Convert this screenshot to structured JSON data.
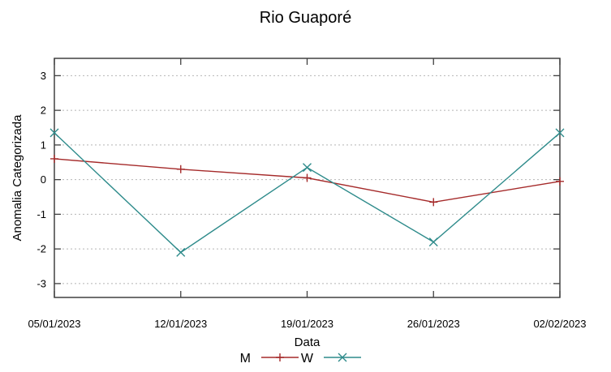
{
  "title": "Rio Guaporé",
  "chart_data": {
    "type": "line",
    "title": "Rio Guaporé",
    "xlabel": "Data",
    "ylabel": "Anomalia Categorizada",
    "categories": [
      "05/01/2023",
      "12/01/2023",
      "19/01/2023",
      "26/01/2023",
      "02/02/2023"
    ],
    "series": [
      {
        "name": "M",
        "color": "#a52a2a",
        "marker": "plus",
        "values": [
          0.6,
          0.3,
          0.05,
          -0.65,
          -0.05
        ]
      },
      {
        "name": "W",
        "color": "#2e8b8b",
        "marker": "cross",
        "values": [
          1.35,
          -2.1,
          0.35,
          -1.8,
          1.35
        ]
      }
    ],
    "ylim": [
      -3.4,
      3.5
    ],
    "yticks": [
      -3,
      -2,
      -1,
      0,
      1,
      2,
      3
    ],
    "grid": "horizontal-dotted",
    "grid_color": "#b5b5b5",
    "axis_color": "#404040",
    "legend_position": "bottom-center"
  }
}
